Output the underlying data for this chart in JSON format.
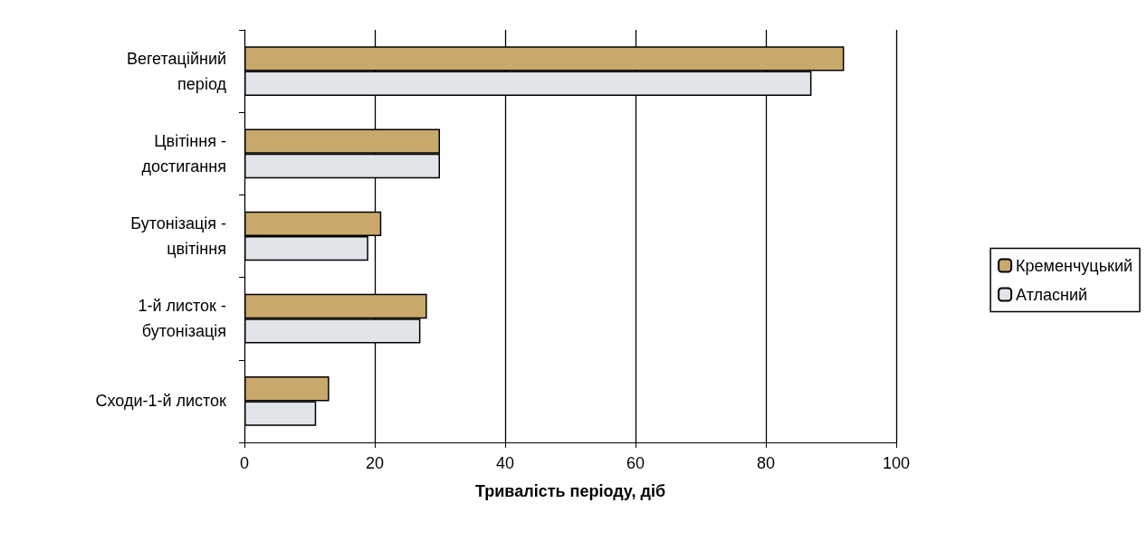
{
  "chart_data": {
    "type": "bar",
    "orientation": "horizontal",
    "xlabel": "Тривалість періоду, діб",
    "categories": [
      "Вегетаційний\nперіод",
      "Цвітіння -\nдостигання",
      "Бутонізація -\nцвітіння",
      "1-й листок -\nбутонізація",
      "Сходи-1-й листок"
    ],
    "series": [
      {
        "name": "Кременчуцький",
        "color": "#c9a96b",
        "values": [
          92,
          30,
          21,
          28,
          13
        ]
      },
      {
        "name": "Атласний",
        "color": "#e1e4e8",
        "values": [
          87,
          30,
          19,
          27,
          11
        ]
      }
    ],
    "xlim": [
      0,
      100
    ],
    "xticks": [
      0,
      20,
      40,
      60,
      80,
      100
    ],
    "grid": "x",
    "legend": "right"
  }
}
